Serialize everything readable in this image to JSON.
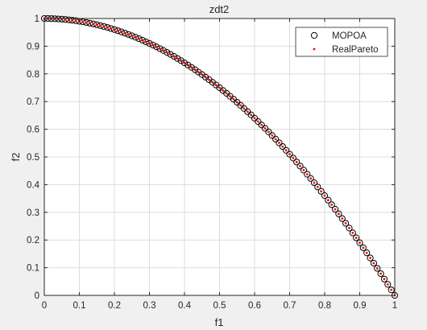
{
  "chart_data": {
    "type": "scatter",
    "title": "zdt2",
    "xlabel": "f1",
    "ylabel": "f2",
    "xlim": [
      0,
      1
    ],
    "ylim": [
      0,
      1
    ],
    "xticks": [
      "0",
      "0.1",
      "0.2",
      "0.3",
      "0.4",
      "0.5",
      "0.6",
      "0.7",
      "0.8",
      "0.9",
      "1"
    ],
    "yticks": [
      "0",
      "0.1",
      "0.2",
      "0.3",
      "0.4",
      "0.5",
      "0.6",
      "0.7",
      "0.8",
      "0.9",
      "1"
    ],
    "grid": true,
    "legend_position": "top-right",
    "series": [
      {
        "name": "MOPOA",
        "marker": "open-circle",
        "color": "#000000",
        "x": [
          0,
          0.01,
          0.02,
          0.03,
          0.04,
          0.05,
          0.06,
          0.07,
          0.08,
          0.09,
          0.1,
          0.11,
          0.12,
          0.13,
          0.14,
          0.15,
          0.16,
          0.17,
          0.18,
          0.19,
          0.2,
          0.21,
          0.22,
          0.23,
          0.24,
          0.25,
          0.26,
          0.27,
          0.28,
          0.29,
          0.3,
          0.31,
          0.32,
          0.33,
          0.34,
          0.35,
          0.36,
          0.37,
          0.38,
          0.39,
          0.4,
          0.41,
          0.42,
          0.43,
          0.44,
          0.45,
          0.46,
          0.47,
          0.48,
          0.49,
          0.5,
          0.51,
          0.52,
          0.53,
          0.54,
          0.55,
          0.56,
          0.57,
          0.58,
          0.59,
          0.6,
          0.61,
          0.62,
          0.63,
          0.64,
          0.65,
          0.66,
          0.67,
          0.68,
          0.69,
          0.7,
          0.71,
          0.72,
          0.73,
          0.74,
          0.75,
          0.76,
          0.77,
          0.78,
          0.79,
          0.8,
          0.81,
          0.82,
          0.83,
          0.84,
          0.85,
          0.86,
          0.87,
          0.88,
          0.89,
          0.9,
          0.91,
          0.92,
          0.93,
          0.94,
          0.95,
          0.96,
          0.97,
          0.98,
          0.99,
          1
        ],
        "y": [
          1,
          0.9999,
          0.9996,
          0.9991,
          0.9984,
          0.9975,
          0.9964,
          0.9951,
          0.9936,
          0.9919,
          0.99,
          0.9879,
          0.9856,
          0.9831,
          0.9804,
          0.9775,
          0.9744,
          0.9711,
          0.9676,
          0.9639,
          0.96,
          0.9559,
          0.9516,
          0.9471,
          0.9424,
          0.9375,
          0.9324,
          0.9271,
          0.9216,
          0.9159,
          0.91,
          0.9039,
          0.8976,
          0.8911,
          0.8844,
          0.8775,
          0.8704,
          0.8631,
          0.8556,
          0.8479,
          0.84,
          0.8319,
          0.8236,
          0.8151,
          0.8064,
          0.7975,
          0.7884,
          0.7791,
          0.7696,
          0.7599,
          0.75,
          0.7399,
          0.7296,
          0.7191,
          0.7084,
          0.6975,
          0.6864,
          0.6751,
          0.6636,
          0.6519,
          0.64,
          0.6279,
          0.6156,
          0.6031,
          0.5904,
          0.5775,
          0.5644,
          0.5511,
          0.5376,
          0.5239,
          0.51,
          0.4959,
          0.4816,
          0.4671,
          0.4524,
          0.4375,
          0.4224,
          0.4071,
          0.3916,
          0.3759,
          0.36,
          0.3439,
          0.3276,
          0.3111,
          0.2944,
          0.2775,
          0.2604,
          0.2431,
          0.2256,
          0.2079,
          0.19,
          0.1719,
          0.1536,
          0.1351,
          0.1164,
          0.0975,
          0.0784,
          0.0591,
          0.0396,
          0.0199,
          0
        ]
      },
      {
        "name": "RealPareto",
        "marker": "dot",
        "color": "#ff0000",
        "x": [
          0,
          0.01,
          0.02,
          0.03,
          0.04,
          0.05,
          0.06,
          0.07,
          0.08,
          0.09,
          0.1,
          0.11,
          0.12,
          0.13,
          0.14,
          0.15,
          0.16,
          0.17,
          0.18,
          0.19,
          0.2,
          0.21,
          0.22,
          0.23,
          0.24,
          0.25,
          0.26,
          0.27,
          0.28,
          0.29,
          0.3,
          0.31,
          0.32,
          0.33,
          0.34,
          0.35,
          0.36,
          0.37,
          0.38,
          0.39,
          0.4,
          0.41,
          0.42,
          0.43,
          0.44,
          0.45,
          0.46,
          0.47,
          0.48,
          0.49,
          0.5,
          0.51,
          0.52,
          0.53,
          0.54,
          0.55,
          0.56,
          0.57,
          0.58,
          0.59,
          0.6,
          0.61,
          0.62,
          0.63,
          0.64,
          0.65,
          0.66,
          0.67,
          0.68,
          0.69,
          0.7,
          0.71,
          0.72,
          0.73,
          0.74,
          0.75,
          0.76,
          0.77,
          0.78,
          0.79,
          0.8,
          0.81,
          0.82,
          0.83,
          0.84,
          0.85,
          0.86,
          0.87,
          0.88,
          0.89,
          0.9,
          0.91,
          0.92,
          0.93,
          0.94,
          0.95,
          0.96,
          0.97,
          0.98,
          0.99,
          1
        ],
        "y": [
          1,
          0.9999,
          0.9996,
          0.9991,
          0.9984,
          0.9975,
          0.9964,
          0.9951,
          0.9936,
          0.9919,
          0.99,
          0.9879,
          0.9856,
          0.9831,
          0.9804,
          0.9775,
          0.9744,
          0.9711,
          0.9676,
          0.9639,
          0.96,
          0.9559,
          0.9516,
          0.9471,
          0.9424,
          0.9375,
          0.9324,
          0.9271,
          0.9216,
          0.9159,
          0.91,
          0.9039,
          0.8976,
          0.8911,
          0.8844,
          0.8775,
          0.8704,
          0.8631,
          0.8556,
          0.8479,
          0.84,
          0.8319,
          0.8236,
          0.8151,
          0.8064,
          0.7975,
          0.7884,
          0.7791,
          0.7696,
          0.7599,
          0.75,
          0.7399,
          0.7296,
          0.7191,
          0.7084,
          0.6975,
          0.6864,
          0.6751,
          0.6636,
          0.6519,
          0.64,
          0.6279,
          0.6156,
          0.6031,
          0.5904,
          0.5775,
          0.5644,
          0.5511,
          0.5376,
          0.5239,
          0.51,
          0.4959,
          0.4816,
          0.4671,
          0.4524,
          0.4375,
          0.4224,
          0.4071,
          0.3916,
          0.3759,
          0.36,
          0.3439,
          0.3276,
          0.3111,
          0.2944,
          0.2775,
          0.2604,
          0.2431,
          0.2256,
          0.2079,
          0.19,
          0.1719,
          0.1536,
          0.1351,
          0.1164,
          0.0975,
          0.0784,
          0.0591,
          0.0396,
          0.0199,
          0
        ]
      }
    ]
  }
}
